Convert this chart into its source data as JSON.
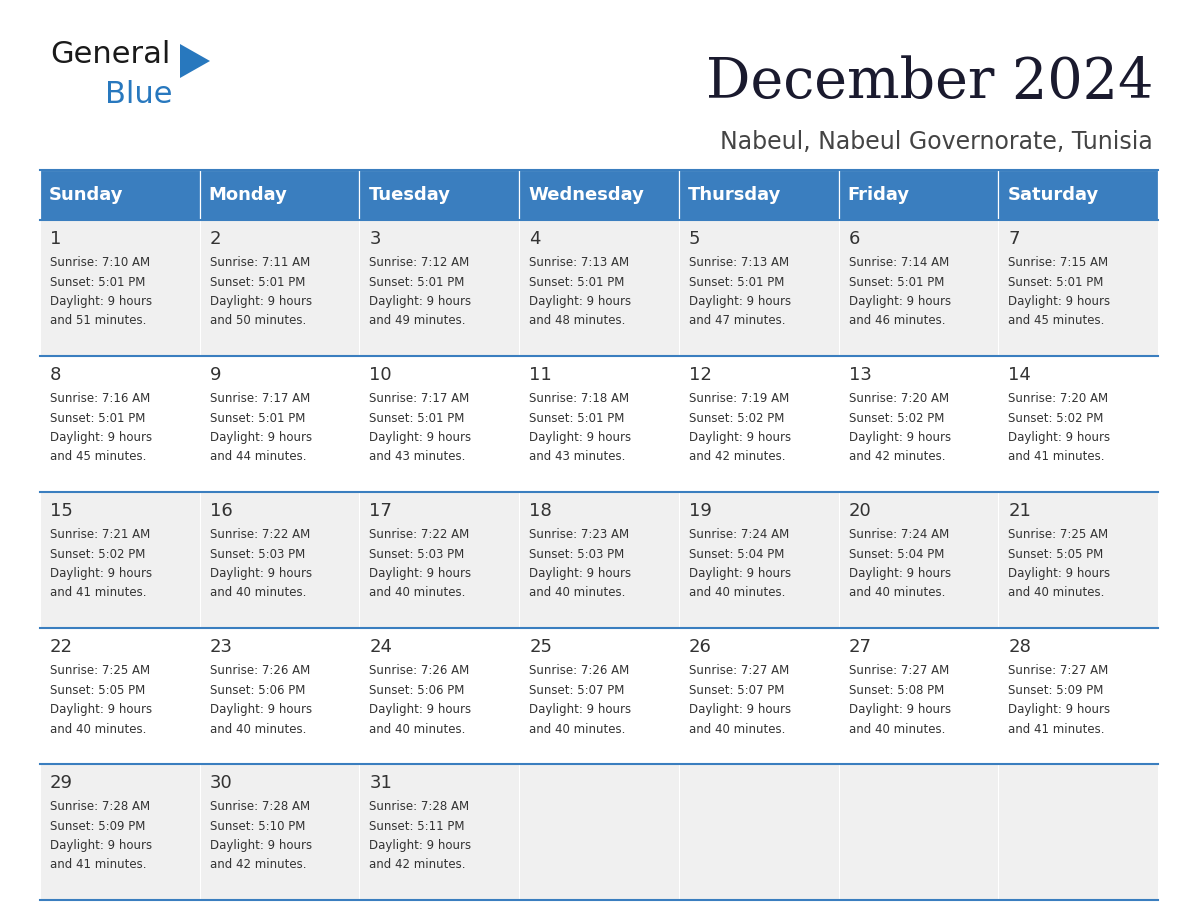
{
  "title": "December 2024",
  "subtitle": "Nabeul, Nabeul Governorate, Tunisia",
  "days_of_week": [
    "Sunday",
    "Monday",
    "Tuesday",
    "Wednesday",
    "Thursday",
    "Friday",
    "Saturday"
  ],
  "header_bg": "#3a7ebf",
  "header_text": "#ffffff",
  "row_bg_odd": "#f0f0f0",
  "row_bg_even": "#ffffff",
  "divider_color": "#3a7ebf",
  "text_color": "#333333",
  "calendar": [
    [
      {
        "day": 1,
        "sunrise": "7:10 AM",
        "sunset": "5:01 PM",
        "daylight_hours": 9,
        "daylight_minutes": 51
      },
      {
        "day": 2,
        "sunrise": "7:11 AM",
        "sunset": "5:01 PM",
        "daylight_hours": 9,
        "daylight_minutes": 50
      },
      {
        "day": 3,
        "sunrise": "7:12 AM",
        "sunset": "5:01 PM",
        "daylight_hours": 9,
        "daylight_minutes": 49
      },
      {
        "day": 4,
        "sunrise": "7:13 AM",
        "sunset": "5:01 PM",
        "daylight_hours": 9,
        "daylight_minutes": 48
      },
      {
        "day": 5,
        "sunrise": "7:13 AM",
        "sunset": "5:01 PM",
        "daylight_hours": 9,
        "daylight_minutes": 47
      },
      {
        "day": 6,
        "sunrise": "7:14 AM",
        "sunset": "5:01 PM",
        "daylight_hours": 9,
        "daylight_minutes": 46
      },
      {
        "day": 7,
        "sunrise": "7:15 AM",
        "sunset": "5:01 PM",
        "daylight_hours": 9,
        "daylight_minutes": 45
      }
    ],
    [
      {
        "day": 8,
        "sunrise": "7:16 AM",
        "sunset": "5:01 PM",
        "daylight_hours": 9,
        "daylight_minutes": 45
      },
      {
        "day": 9,
        "sunrise": "7:17 AM",
        "sunset": "5:01 PM",
        "daylight_hours": 9,
        "daylight_minutes": 44
      },
      {
        "day": 10,
        "sunrise": "7:17 AM",
        "sunset": "5:01 PM",
        "daylight_hours": 9,
        "daylight_minutes": 43
      },
      {
        "day": 11,
        "sunrise": "7:18 AM",
        "sunset": "5:01 PM",
        "daylight_hours": 9,
        "daylight_minutes": 43
      },
      {
        "day": 12,
        "sunrise": "7:19 AM",
        "sunset": "5:02 PM",
        "daylight_hours": 9,
        "daylight_minutes": 42
      },
      {
        "day": 13,
        "sunrise": "7:20 AM",
        "sunset": "5:02 PM",
        "daylight_hours": 9,
        "daylight_minutes": 42
      },
      {
        "day": 14,
        "sunrise": "7:20 AM",
        "sunset": "5:02 PM",
        "daylight_hours": 9,
        "daylight_minutes": 41
      }
    ],
    [
      {
        "day": 15,
        "sunrise": "7:21 AM",
        "sunset": "5:02 PM",
        "daylight_hours": 9,
        "daylight_minutes": 41
      },
      {
        "day": 16,
        "sunrise": "7:22 AM",
        "sunset": "5:03 PM",
        "daylight_hours": 9,
        "daylight_minutes": 40
      },
      {
        "day": 17,
        "sunrise": "7:22 AM",
        "sunset": "5:03 PM",
        "daylight_hours": 9,
        "daylight_minutes": 40
      },
      {
        "day": 18,
        "sunrise": "7:23 AM",
        "sunset": "5:03 PM",
        "daylight_hours": 9,
        "daylight_minutes": 40
      },
      {
        "day": 19,
        "sunrise": "7:24 AM",
        "sunset": "5:04 PM",
        "daylight_hours": 9,
        "daylight_minutes": 40
      },
      {
        "day": 20,
        "sunrise": "7:24 AM",
        "sunset": "5:04 PM",
        "daylight_hours": 9,
        "daylight_minutes": 40
      },
      {
        "day": 21,
        "sunrise": "7:25 AM",
        "sunset": "5:05 PM",
        "daylight_hours": 9,
        "daylight_minutes": 40
      }
    ],
    [
      {
        "day": 22,
        "sunrise": "7:25 AM",
        "sunset": "5:05 PM",
        "daylight_hours": 9,
        "daylight_minutes": 40
      },
      {
        "day": 23,
        "sunrise": "7:26 AM",
        "sunset": "5:06 PM",
        "daylight_hours": 9,
        "daylight_minutes": 40
      },
      {
        "day": 24,
        "sunrise": "7:26 AM",
        "sunset": "5:06 PM",
        "daylight_hours": 9,
        "daylight_minutes": 40
      },
      {
        "day": 25,
        "sunrise": "7:26 AM",
        "sunset": "5:07 PM",
        "daylight_hours": 9,
        "daylight_minutes": 40
      },
      {
        "day": 26,
        "sunrise": "7:27 AM",
        "sunset": "5:07 PM",
        "daylight_hours": 9,
        "daylight_minutes": 40
      },
      {
        "day": 27,
        "sunrise": "7:27 AM",
        "sunset": "5:08 PM",
        "daylight_hours": 9,
        "daylight_minutes": 40
      },
      {
        "day": 28,
        "sunrise": "7:27 AM",
        "sunset": "5:09 PM",
        "daylight_hours": 9,
        "daylight_minutes": 41
      }
    ],
    [
      {
        "day": 29,
        "sunrise": "7:28 AM",
        "sunset": "5:09 PM",
        "daylight_hours": 9,
        "daylight_minutes": 41
      },
      {
        "day": 30,
        "sunrise": "7:28 AM",
        "sunset": "5:10 PM",
        "daylight_hours": 9,
        "daylight_minutes": 42
      },
      {
        "day": 31,
        "sunrise": "7:28 AM",
        "sunset": "5:11 PM",
        "daylight_hours": 9,
        "daylight_minutes": 42
      },
      null,
      null,
      null,
      null
    ]
  ],
  "logo_general_color": "#1a1a1a",
  "logo_blue_color": "#2878be",
  "logo_triangle_color": "#2878be",
  "title_color": "#1a1a2e",
  "subtitle_color": "#444444"
}
